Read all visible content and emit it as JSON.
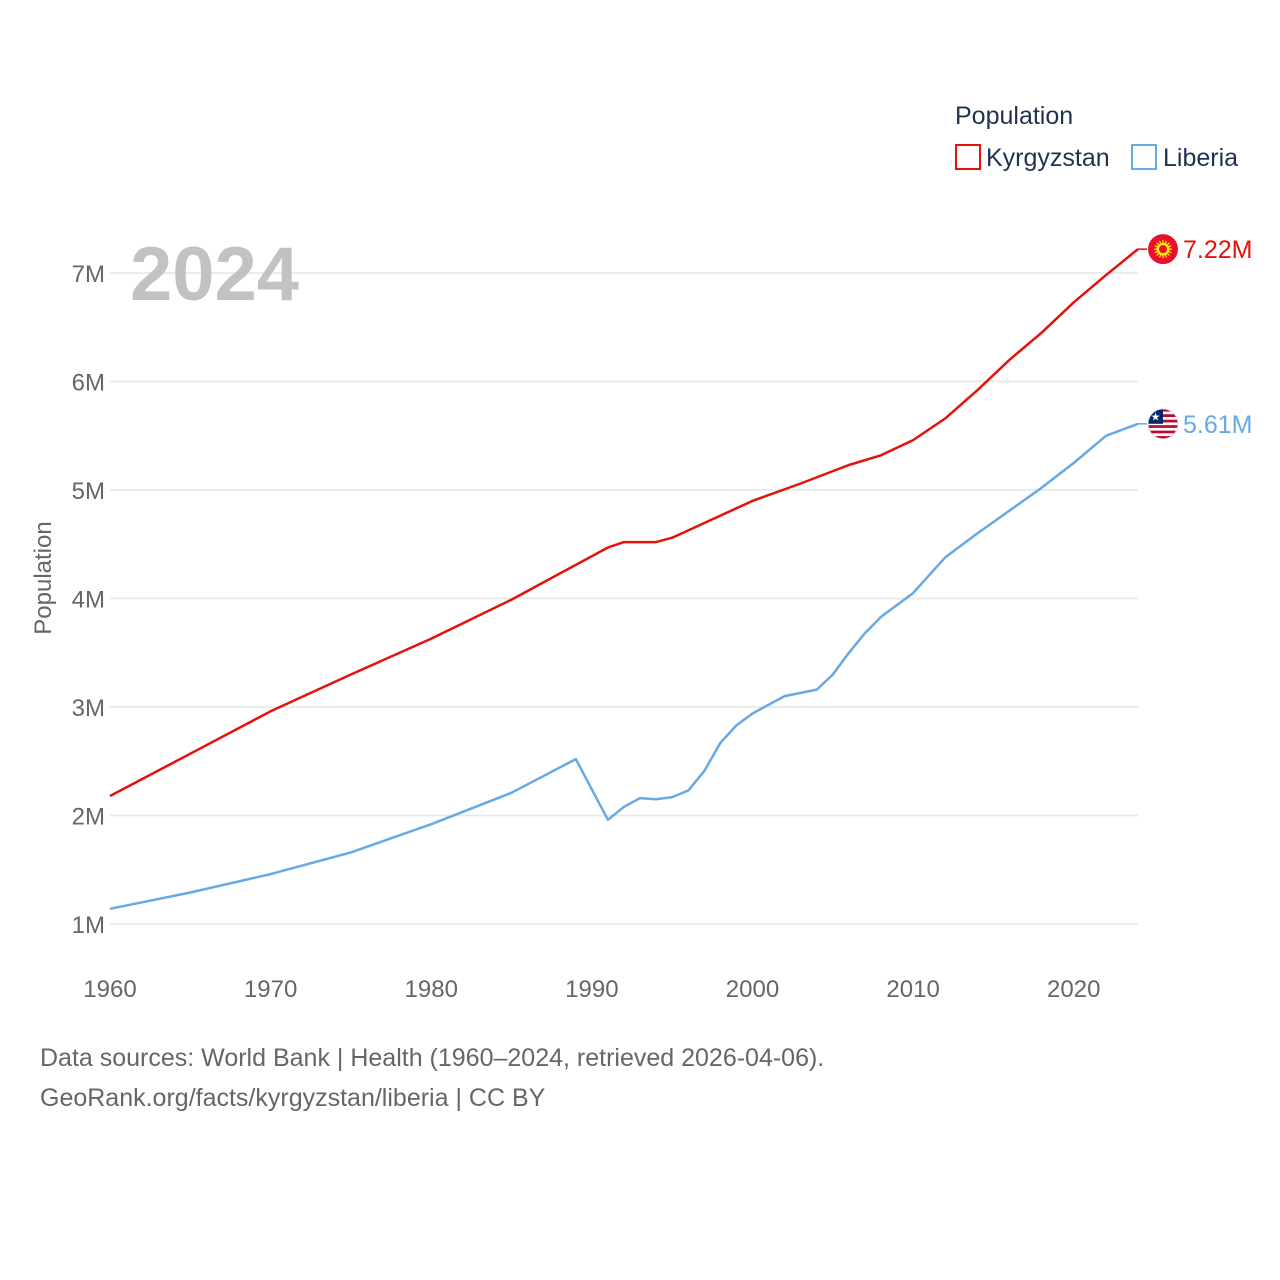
{
  "chart_data": {
    "type": "line",
    "title": "Population",
    "ylabel": "Population",
    "xlabel": "",
    "current_year_label": "2024",
    "xlim": [
      1960,
      2024
    ],
    "ylim": [
      1000000,
      7500000
    ],
    "x_ticks": [
      1960,
      1970,
      1980,
      1990,
      2000,
      2010,
      2020
    ],
    "x_tick_labels": [
      "1960",
      "1970",
      "1980",
      "1990",
      "2000",
      "2010",
      "2020"
    ],
    "y_ticks": [
      1000000,
      2000000,
      3000000,
      4000000,
      5000000,
      6000000,
      7000000
    ],
    "y_tick_labels": [
      "1M",
      "2M",
      "3M",
      "4M",
      "5M",
      "6M",
      "7M"
    ],
    "grid": true,
    "legend_placement": "top-right",
    "series": [
      {
        "name": "Kyrgyzstan",
        "color": "#e3120b",
        "end_label": "7.22M",
        "flag_icon": "kyrgyzstan-flag-icon",
        "points": [
          [
            1960,
            2180000
          ],
          [
            1965,
            2570000
          ],
          [
            1970,
            2960000
          ],
          [
            1975,
            3300000
          ],
          [
            1980,
            3630000
          ],
          [
            1985,
            3990000
          ],
          [
            1988,
            4230000
          ],
          [
            1990,
            4390000
          ],
          [
            1991,
            4470000
          ],
          [
            1992,
            4520000
          ],
          [
            1994,
            4520000
          ],
          [
            1995,
            4560000
          ],
          [
            2000,
            4900000
          ],
          [
            2003,
            5060000
          ],
          [
            2006,
            5230000
          ],
          [
            2008,
            5320000
          ],
          [
            2010,
            5460000
          ],
          [
            2012,
            5660000
          ],
          [
            2014,
            5920000
          ],
          [
            2016,
            6200000
          ],
          [
            2018,
            6450000
          ],
          [
            2020,
            6730000
          ],
          [
            2022,
            6980000
          ],
          [
            2024,
            7220000
          ]
        ]
      },
      {
        "name": "Liberia",
        "color": "#67a9e4",
        "end_label": "5.61M",
        "flag_icon": "liberia-flag-icon",
        "points": [
          [
            1960,
            1140000
          ],
          [
            1965,
            1290000
          ],
          [
            1970,
            1460000
          ],
          [
            1975,
            1660000
          ],
          [
            1980,
            1920000
          ],
          [
            1985,
            2210000
          ],
          [
            1989,
            2520000
          ],
          [
            1991,
            1960000
          ],
          [
            1992,
            2080000
          ],
          [
            1993,
            2160000
          ],
          [
            1994,
            2150000
          ],
          [
            1995,
            2170000
          ],
          [
            1996,
            2230000
          ],
          [
            1997,
            2410000
          ],
          [
            1998,
            2670000
          ],
          [
            1999,
            2830000
          ],
          [
            2000,
            2940000
          ],
          [
            2002,
            3100000
          ],
          [
            2004,
            3160000
          ],
          [
            2005,
            3300000
          ],
          [
            2006,
            3500000
          ],
          [
            2007,
            3680000
          ],
          [
            2008,
            3830000
          ],
          [
            2010,
            4050000
          ],
          [
            2012,
            4380000
          ],
          [
            2014,
            4600000
          ],
          [
            2016,
            4810000
          ],
          [
            2018,
            5020000
          ],
          [
            2020,
            5250000
          ],
          [
            2022,
            5500000
          ],
          [
            2024,
            5610000
          ]
        ]
      }
    ]
  },
  "footer": {
    "line1": "Data sources: World Bank | Health (1960–2024, retrieved 2026-04-06).",
    "line2": "GeoRank.org/facts/kyrgyzstan/liberia | CC BY"
  }
}
